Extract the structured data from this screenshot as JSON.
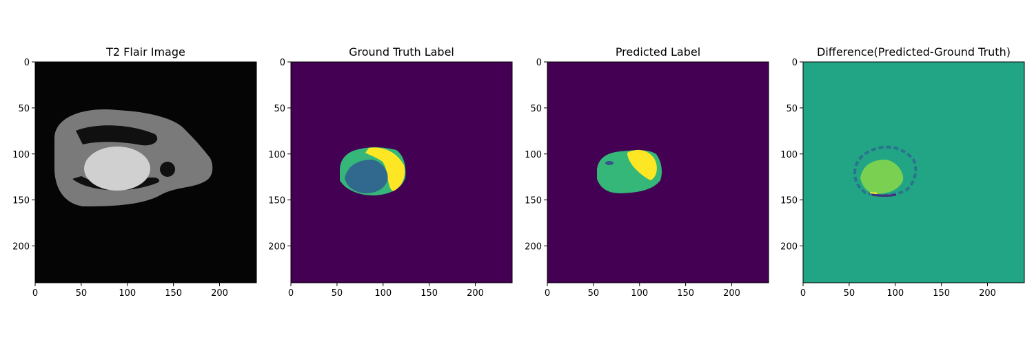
{
  "chart_data": [
    {
      "type": "heatmap",
      "title": "T2 Flair Image",
      "xlim": [
        0,
        240
      ],
      "ylim": [
        240,
        0
      ],
      "x_ticks": [
        0,
        50,
        100,
        150,
        200
      ],
      "y_ticks": [
        0,
        50,
        100,
        150,
        200
      ],
      "content": "mri",
      "colors": {
        "background": "#050505",
        "tissue": "#7a7a7a",
        "tumor": "#d0d0d0",
        "ventricle": "#101010"
      }
    },
    {
      "type": "heatmap",
      "title": "Ground Truth Label",
      "xlim": [
        0,
        240
      ],
      "ylim": [
        240,
        0
      ],
      "x_ticks": [
        0,
        50,
        100,
        150,
        200
      ],
      "y_ticks": [
        0,
        50,
        100,
        150,
        200
      ],
      "content": "truth",
      "colors": {
        "background": "#440154",
        "edema": "#35b779",
        "enhancing": "#fde725",
        "core": "#31688e"
      }
    },
    {
      "type": "heatmap",
      "title": "Predicted Label",
      "xlim": [
        0,
        240
      ],
      "ylim": [
        240,
        0
      ],
      "x_ticks": [
        0,
        50,
        100,
        150,
        200
      ],
      "y_ticks": [
        0,
        50,
        100,
        150,
        200
      ],
      "content": "pred",
      "colors": {
        "background": "#440154",
        "edema": "#35b779",
        "enhancing": "#fde725",
        "spot": "#3b528b"
      }
    },
    {
      "type": "heatmap",
      "title": "Difference(Predicted-Ground Truth)",
      "xlim": [
        0,
        240
      ],
      "ylim": [
        240,
        0
      ],
      "x_ticks": [
        0,
        50,
        100,
        150,
        200
      ],
      "y_ticks": [
        0,
        50,
        100,
        150,
        200
      ],
      "content": "diff",
      "colors": {
        "background": "#21a585",
        "positive": "#7ad151",
        "ring": "#2c728e",
        "negative": "#472d7b",
        "edge": "#fde725"
      }
    }
  ]
}
